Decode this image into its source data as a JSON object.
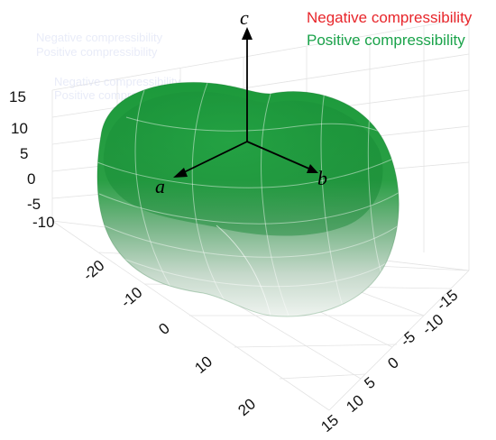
{
  "legend": {
    "negative": {
      "label": "Negative compressibility",
      "color": "#e8262b"
    },
    "positive": {
      "label": "Positive compressibility",
      "color": "#1aa34a"
    }
  },
  "axes": {
    "a": "a",
    "b": "b",
    "c": "c"
  },
  "ticks": {
    "vertical": [
      "15",
      "10",
      "5",
      "0",
      "-5",
      "-10"
    ],
    "left_horizontal": [
      "-20",
      "-10",
      "0",
      "10",
      "20"
    ],
    "right_horizontal": [
      "-15",
      "-10",
      "-5",
      "0",
      "5",
      "10",
      "15"
    ]
  },
  "surface": {
    "top_color": "#1f9a3e",
    "bottom_color": "#e9efea",
    "mesh_color": "#ffffff"
  }
}
